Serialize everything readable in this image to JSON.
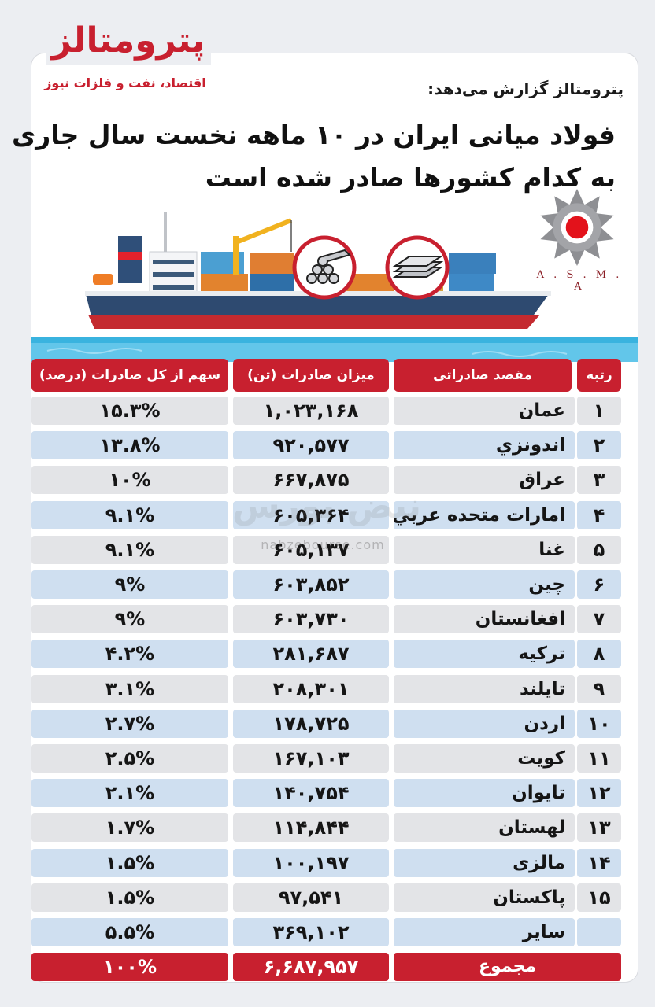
{
  "brand": {
    "name": "پترومتالز",
    "tagline": "اقتصاد، نفت و فلزات نیوز"
  },
  "report_line": "پترومتالز گزارش می‌دهد:",
  "headline": {
    "line1": "فولاد میانی ایران در ۱۰ ماهه نخست سال جاری",
    "line2": "به کدام کشورها صادر شده است"
  },
  "partner_logo": {
    "text": "A . S . M . A",
    "icon": "asma-gear-logo"
  },
  "illustration": {
    "icons": [
      "cargo-ship-icon",
      "steel-bars-icon",
      "steel-sheets-icon"
    ]
  },
  "watermark": {
    "text": "نبض بورس",
    "url": "nabzebourse.com"
  },
  "colors": {
    "accent": "#c8202f",
    "row_gray": "#e3e4e7",
    "row_blue": "#cfdff0"
  },
  "table": {
    "headers": {
      "rank": "رتبه",
      "country": "مقصد صادراتی",
      "amount": "میزان صادرات (تن)",
      "share": "سهم از کل صادرات (درصد)"
    },
    "rows": [
      {
        "rank": "۱",
        "country": "عمان",
        "amount": "۱,۰۲۳,۱۶۸",
        "share": "۱۵.۳%"
      },
      {
        "rank": "۲",
        "country": "اندونزي",
        "amount": "۹۲۰,۵۷۷",
        "share": "۱۳.۸%"
      },
      {
        "rank": "۳",
        "country": "عراق",
        "amount": "۶۶۷,۸۷۵",
        "share": "۱۰%"
      },
      {
        "rank": "۴",
        "country": "امارات متحده عربي",
        "amount": "۶۰۵,۳۶۴",
        "share": "۹.۱%"
      },
      {
        "rank": "۵",
        "country": "غنا",
        "amount": "۶۰۵,۱۳۷",
        "share": "۹.۱%"
      },
      {
        "rank": "۶",
        "country": "چین",
        "amount": "۶۰۳,۸۵۲",
        "share": "۹%"
      },
      {
        "rank": "۷",
        "country": "افغانستان",
        "amount": "۶۰۳,۷۳۰",
        "share": "۹%"
      },
      {
        "rank": "۸",
        "country": "ترکیه",
        "amount": "۲۸۱,۶۸۷",
        "share": "۴.۲%"
      },
      {
        "rank": "۹",
        "country": "تایلند",
        "amount": "۲۰۸,۳۰۱",
        "share": "۳.۱%"
      },
      {
        "rank": "۱۰",
        "country": "اردن",
        "amount": "۱۷۸,۷۲۵",
        "share": "۲.۷%"
      },
      {
        "rank": "۱۱",
        "country": "کویت",
        "amount": "۱۶۷,۱۰۳",
        "share": "۲.۵%"
      },
      {
        "rank": "۱۲",
        "country": "تایوان",
        "amount": "۱۴۰,۷۵۴",
        "share": "۲.۱%"
      },
      {
        "rank": "۱۳",
        "country": "لهستان",
        "amount": "۱۱۴,۸۴۴",
        "share": "۱.۷%"
      },
      {
        "rank": "۱۴",
        "country": "مالزی",
        "amount": "۱۰۰,۱۹۷",
        "share": "۱.۵%"
      },
      {
        "rank": "۱۵",
        "country": "پاکستان",
        "amount": "۹۷,۵۴۱",
        "share": "۱.۵%"
      },
      {
        "rank": "",
        "country": "سایر",
        "amount": "۳۶۹,۱۰۲",
        "share": "۵.۵%"
      }
    ],
    "total": {
      "label": "مجموع",
      "amount": "۶,۶۸۷,۹۵۷",
      "share": "۱۰۰%"
    }
  }
}
